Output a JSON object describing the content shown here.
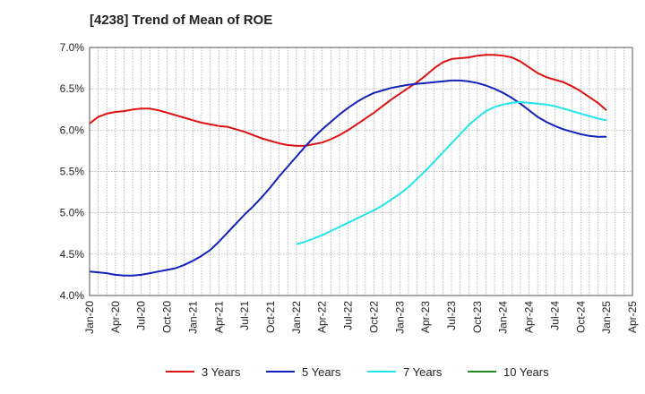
{
  "chart_data": {
    "type": "line",
    "title": "[4238]  Trend of Mean of ROE",
    "xlabel": "",
    "ylabel": "",
    "x_ticks": [
      "Jan-20",
      "Apr-20",
      "Jul-20",
      "Oct-20",
      "Jan-21",
      "Apr-21",
      "Jul-21",
      "Oct-21",
      "Jan-22",
      "Apr-22",
      "Jul-22",
      "Oct-22",
      "Jan-23",
      "Apr-23",
      "Jul-23",
      "Oct-23",
      "Jan-24",
      "Apr-24",
      "Jul-24",
      "Oct-24",
      "Jan-25",
      "Apr-25"
    ],
    "y_ticks": [
      "4.0%",
      "4.5%",
      "5.0%",
      "5.5%",
      "6.0%",
      "6.5%",
      "7.0%"
    ],
    "ylim": [
      4.0,
      7.0
    ],
    "grid": true,
    "legend_position": "bottom",
    "series": [
      {
        "name": "3 Years",
        "color": "#dd1111",
        "points": [
          [
            "Jan-20",
            6.08
          ],
          [
            "Feb-20",
            6.16
          ],
          [
            "Mar-20",
            6.2
          ],
          [
            "Apr-20",
            6.22
          ],
          [
            "May-20",
            6.23
          ],
          [
            "Jun-20",
            6.25
          ],
          [
            "Jul-20",
            6.26
          ],
          [
            "Aug-20",
            6.26
          ],
          [
            "Sep-20",
            6.24
          ],
          [
            "Oct-20",
            6.21
          ],
          [
            "Nov-20",
            6.18
          ],
          [
            "Dec-20",
            6.15
          ],
          [
            "Jan-21",
            6.12
          ],
          [
            "Feb-21",
            6.09
          ],
          [
            "Mar-21",
            6.07
          ],
          [
            "Apr-21",
            6.05
          ],
          [
            "May-21",
            6.04
          ],
          [
            "Jun-21",
            6.01
          ],
          [
            "Jul-21",
            5.98
          ],
          [
            "Aug-21",
            5.94
          ],
          [
            "Sep-21",
            5.9
          ],
          [
            "Oct-21",
            5.87
          ],
          [
            "Nov-21",
            5.84
          ],
          [
            "Dec-21",
            5.82
          ],
          [
            "Jan-22",
            5.81
          ],
          [
            "Feb-22",
            5.81
          ],
          [
            "Mar-22",
            5.83
          ],
          [
            "Apr-22",
            5.85
          ],
          [
            "May-22",
            5.89
          ],
          [
            "Jun-22",
            5.94
          ],
          [
            "Jul-22",
            6.0
          ],
          [
            "Aug-22",
            6.07
          ],
          [
            "Sep-22",
            6.14
          ],
          [
            "Oct-22",
            6.21
          ],
          [
            "Nov-22",
            6.29
          ],
          [
            "Dec-22",
            6.37
          ],
          [
            "Jan-23",
            6.44
          ],
          [
            "Feb-23",
            6.51
          ],
          [
            "Mar-23",
            6.58
          ],
          [
            "Apr-23",
            6.66
          ],
          [
            "May-23",
            6.75
          ],
          [
            "Jun-23",
            6.82
          ],
          [
            "Jul-23",
            6.86
          ],
          [
            "Aug-23",
            6.87
          ],
          [
            "Sep-23",
            6.88
          ],
          [
            "Oct-23",
            6.9
          ],
          [
            "Nov-23",
            6.91
          ],
          [
            "Dec-23",
            6.91
          ],
          [
            "Jan-24",
            6.9
          ],
          [
            "Feb-24",
            6.88
          ],
          [
            "Mar-24",
            6.83
          ],
          [
            "Apr-24",
            6.76
          ],
          [
            "May-24",
            6.69
          ],
          [
            "Jun-24",
            6.64
          ],
          [
            "Jul-24",
            6.61
          ],
          [
            "Aug-24",
            6.58
          ],
          [
            "Sep-24",
            6.53
          ],
          [
            "Oct-24",
            6.47
          ],
          [
            "Nov-24",
            6.4
          ],
          [
            "Dec-24",
            6.33
          ],
          [
            "Jan-25",
            6.24
          ]
        ]
      },
      {
        "name": "5 Years",
        "color": "#1122bb",
        "points": [
          [
            "Jan-20",
            4.29
          ],
          [
            "Feb-20",
            4.28
          ],
          [
            "Mar-20",
            4.27
          ],
          [
            "Apr-20",
            4.25
          ],
          [
            "May-20",
            4.24
          ],
          [
            "Jun-20",
            4.24
          ],
          [
            "Jul-20",
            4.25
          ],
          [
            "Aug-20",
            4.27
          ],
          [
            "Sep-20",
            4.29
          ],
          [
            "Oct-20",
            4.31
          ],
          [
            "Nov-20",
            4.33
          ],
          [
            "Dec-20",
            4.37
          ],
          [
            "Jan-21",
            4.42
          ],
          [
            "Feb-21",
            4.48
          ],
          [
            "Mar-21",
            4.55
          ],
          [
            "Apr-21",
            4.65
          ],
          [
            "May-21",
            4.76
          ],
          [
            "Jun-21",
            4.87
          ],
          [
            "Jul-21",
            4.98
          ],
          [
            "Aug-21",
            5.08
          ],
          [
            "Sep-21",
            5.19
          ],
          [
            "Oct-21",
            5.31
          ],
          [
            "Nov-21",
            5.44
          ],
          [
            "Dec-21",
            5.56
          ],
          [
            "Jan-22",
            5.68
          ],
          [
            "Feb-22",
            5.8
          ],
          [
            "Mar-22",
            5.91
          ],
          [
            "Apr-22",
            6.01
          ],
          [
            "May-22",
            6.1
          ],
          [
            "Jun-22",
            6.19
          ],
          [
            "Jul-22",
            6.27
          ],
          [
            "Aug-22",
            6.34
          ],
          [
            "Sep-22",
            6.4
          ],
          [
            "Oct-22",
            6.45
          ],
          [
            "Nov-22",
            6.48
          ],
          [
            "Dec-22",
            6.51
          ],
          [
            "Jan-23",
            6.53
          ],
          [
            "Feb-23",
            6.55
          ],
          [
            "Mar-23",
            6.56
          ],
          [
            "Apr-23",
            6.57
          ],
          [
            "May-23",
            6.58
          ],
          [
            "Jun-23",
            6.59
          ],
          [
            "Jul-23",
            6.6
          ],
          [
            "Aug-23",
            6.6
          ],
          [
            "Sep-23",
            6.59
          ],
          [
            "Oct-23",
            6.57
          ],
          [
            "Nov-23",
            6.54
          ],
          [
            "Dec-23",
            6.5
          ],
          [
            "Jan-24",
            6.45
          ],
          [
            "Feb-24",
            6.39
          ],
          [
            "Mar-24",
            6.32
          ],
          [
            "Apr-24",
            6.24
          ],
          [
            "May-24",
            6.16
          ],
          [
            "Jun-24",
            6.1
          ],
          [
            "Jul-24",
            6.05
          ],
          [
            "Aug-24",
            6.01
          ],
          [
            "Sep-24",
            5.98
          ],
          [
            "Oct-24",
            5.95
          ],
          [
            "Nov-24",
            5.93
          ],
          [
            "Dec-24",
            5.92
          ],
          [
            "Jan-25",
            5.92
          ]
        ]
      },
      {
        "name": "7 Years",
        "color": "#22e5ee",
        "points": [
          [
            "Jan-22",
            4.62
          ],
          [
            "Feb-22",
            4.65
          ],
          [
            "Mar-22",
            4.69
          ],
          [
            "Apr-22",
            4.73
          ],
          [
            "May-22",
            4.78
          ],
          [
            "Jun-22",
            4.83
          ],
          [
            "Jul-22",
            4.88
          ],
          [
            "Aug-22",
            4.93
          ],
          [
            "Sep-22",
            4.98
          ],
          [
            "Oct-22",
            5.03
          ],
          [
            "Nov-22",
            5.09
          ],
          [
            "Dec-22",
            5.16
          ],
          [
            "Jan-23",
            5.23
          ],
          [
            "Feb-23",
            5.31
          ],
          [
            "Mar-23",
            5.41
          ],
          [
            "Apr-23",
            5.51
          ],
          [
            "May-23",
            5.62
          ],
          [
            "Jun-23",
            5.73
          ],
          [
            "Jul-23",
            5.84
          ],
          [
            "Aug-23",
            5.95
          ],
          [
            "Sep-23",
            6.06
          ],
          [
            "Oct-23",
            6.15
          ],
          [
            "Nov-23",
            6.23
          ],
          [
            "Dec-23",
            6.28
          ],
          [
            "Jan-24",
            6.31
          ],
          [
            "Feb-24",
            6.33
          ],
          [
            "Mar-24",
            6.34
          ],
          [
            "Apr-24",
            6.33
          ],
          [
            "May-24",
            6.32
          ],
          [
            "Jun-24",
            6.31
          ],
          [
            "Jul-24",
            6.29
          ],
          [
            "Aug-24",
            6.26
          ],
          [
            "Sep-24",
            6.23
          ],
          [
            "Oct-24",
            6.2
          ],
          [
            "Nov-24",
            6.17
          ],
          [
            "Dec-24",
            6.14
          ],
          [
            "Jan-25",
            6.12
          ]
        ]
      },
      {
        "name": "10 Years",
        "color": "#228822",
        "points": []
      }
    ]
  }
}
